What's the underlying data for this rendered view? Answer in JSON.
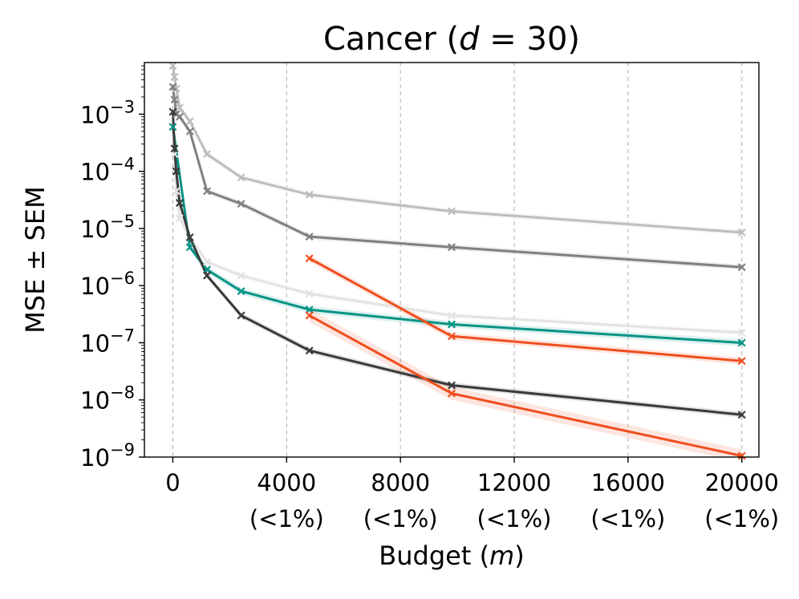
{
  "chart_data": {
    "type": "line",
    "title": "Cancer ($d = 30$)",
    "title_parts": {
      "prefix": "Cancer (",
      "var": "d",
      "eq": " = 30)"
    },
    "xlabel": "Budget ($m$)",
    "xlabel_parts": {
      "prefix": "Budget (",
      "var": "m",
      "suffix": ")"
    },
    "ylabel": "MSE ± SEM",
    "yscale": "log",
    "xlim": [
      -1000,
      20600
    ],
    "ylim": [
      1e-09,
      0.008
    ],
    "x_ticks": [
      {
        "value": 0,
        "label": "0",
        "sub": ""
      },
      {
        "value": 4000,
        "label": "4000",
        "sub": "(<1%)"
      },
      {
        "value": 8000,
        "label": "8000",
        "sub": "(<1%)"
      },
      {
        "value": 12000,
        "label": "12000",
        "sub": "(<1%)"
      },
      {
        "value": 16000,
        "label": "16000",
        "sub": "(<1%)"
      },
      {
        "value": 20000,
        "label": "20000",
        "sub": "(<1%)"
      }
    ],
    "y_ticks": [
      {
        "value": 0.001,
        "base": "10",
        "exp": "−3"
      },
      {
        "value": 0.0001,
        "base": "10",
        "exp": "−4"
      },
      {
        "value": 1e-05,
        "base": "10",
        "exp": "−5"
      },
      {
        "value": 1e-06,
        "base": "10",
        "exp": "−6"
      },
      {
        "value": 1e-07,
        "base": "10",
        "exp": "−7"
      },
      {
        "value": 1e-08,
        "base": "10",
        "exp": "−8"
      },
      {
        "value": 1e-09,
        "base": "10",
        "exp": "−9"
      }
    ],
    "grid": "x-dashed",
    "legend": "none",
    "series": [
      {
        "name": "light-gray",
        "color": "#bdbdbd",
        "band": 0.12,
        "x": [
          0,
          60,
          120,
          240,
          600,
          1200,
          2400,
          4800,
          9800,
          20000
        ],
        "y": [
          0.007,
          0.0045,
          0.0028,
          0.0013,
          0.00075,
          0.0002,
          7.8e-05,
          3.9e-05,
          2e-05,
          8.5e-06
        ]
      },
      {
        "name": "gray",
        "color": "#808080",
        "band": 0.12,
        "x": [
          0,
          60,
          120,
          240,
          600,
          1200,
          2400,
          4800,
          9800,
          20000
        ],
        "y": [
          0.003,
          0.0018,
          0.001,
          0.0009,
          0.0005,
          4.5e-05,
          2.7e-05,
          7.2e-06,
          4.7e-06,
          2.1e-06
        ]
      },
      {
        "name": "very-light-gray",
        "color": "#e3e3e3",
        "band": 0.12,
        "x": [
          0,
          60,
          120,
          240,
          600,
          1200,
          2400,
          4800,
          9800,
          20000
        ],
        "y": [
          0.0006,
          0.0002,
          4.5e-05,
          1.5e-05,
          7e-06,
          2.6e-06,
          1.5e-06,
          7.2e-07,
          3e-07,
          1.5e-07
        ]
      },
      {
        "name": "teal",
        "color": "#079486",
        "band": 0.15,
        "x": [
          0,
          600,
          1200,
          2400,
          4800,
          9800,
          20000
        ],
        "y": [
          0.0006,
          4.7e-06,
          1.9e-06,
          8e-07,
          3.8e-07,
          2.1e-07,
          1e-07
        ]
      },
      {
        "name": "dark",
        "color": "#3a3a3a",
        "band": 0.12,
        "x": [
          0,
          60,
          120,
          240,
          600,
          1200,
          2400,
          4800,
          9800,
          20000
        ],
        "y": [
          0.0011,
          0.00025,
          0.0001,
          2.8e-05,
          7e-06,
          1.5e-06,
          3e-07,
          7.3e-08,
          1.8e-08,
          5.5e-09
        ]
      },
      {
        "name": "orange-upper",
        "color": "#f04e1f",
        "band": 0.15,
        "x": [
          4800,
          9800,
          20000
        ],
        "y": [
          3e-06,
          1.3e-07,
          4.8e-08
        ]
      },
      {
        "name": "orange-lower",
        "color": "#f04e1f",
        "band": 0.3,
        "x": [
          4800,
          9800,
          20000
        ],
        "y": [
          3e-07,
          1.3e-08,
          1.05e-09
        ]
      }
    ]
  }
}
